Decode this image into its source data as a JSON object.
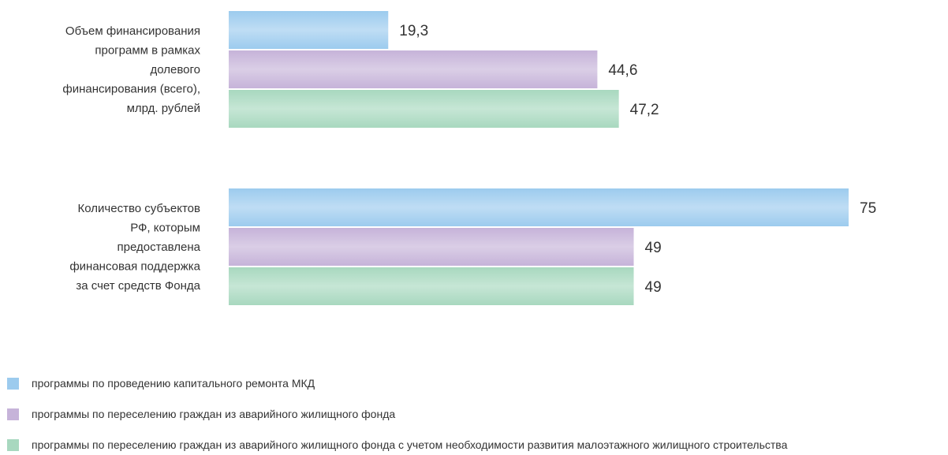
{
  "chart_data": {
    "type": "bar",
    "orientation": "horizontal",
    "categories": [
      [
        "Объем финансирования",
        "программ в рамках",
        "долевого",
        "финансирования (всего),",
        "млрд. рублей"
      ],
      [
        "Количество субъектов",
        "РФ, которым",
        "предоставлена",
        "финансовая поддержка",
        "за счет средств Фонда"
      ]
    ],
    "series": [
      {
        "name": "программы по проведению капитального ремонта МКД",
        "color": "#9ccbee",
        "values": [
          19.3,
          75
        ],
        "labels": [
          "19,3",
          "75"
        ]
      },
      {
        "name": "программы по переселению граждан из аварийного жилищного фонда",
        "color": "#c6b3d9",
        "values": [
          44.6,
          49
        ],
        "labels": [
          "44,6",
          "49"
        ]
      },
      {
        "name": "программы по переселению граждан из аварийного жилищного фонда с учетом необходимости развития малоэтажного жилищного строительства",
        "color": "#a8d8bf",
        "values": [
          47.2,
          49
        ],
        "labels": [
          "47,2",
          "49"
        ]
      }
    ],
    "xlim": [
      0,
      100
    ],
    "grid": false,
    "legend": "bottom-left"
  }
}
